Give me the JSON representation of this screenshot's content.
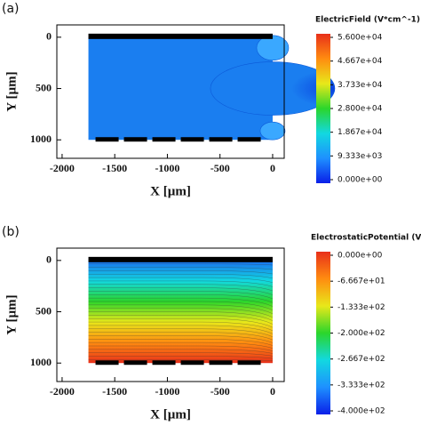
{
  "chart_data": [
    {
      "type": "contour",
      "panel_label": "(a)",
      "xlabel": "X [µm]",
      "ylabel": "Y [µm]",
      "xlim": [
        -2050,
        110
      ],
      "xticks": [
        -2000,
        -1500,
        -1000,
        -500,
        0
      ],
      "ylim": [
        -120,
        1180
      ],
      "y_inverted": true,
      "yticks": [
        0,
        500,
        1000
      ],
      "colorbar_title": "ElectricField (V*cm^-1)",
      "clim": [
        0,
        56000
      ],
      "colormap": [
        "#0a1fe8",
        "#1e90ff",
        "#12d8e0",
        "#2bd62b",
        "#e8e81a",
        "#ff8c10",
        "#e8301a"
      ],
      "cticks": [
        {
          "value": 56000,
          "label": "5.600e+04"
        },
        {
          "value": 46670,
          "label": "4.667e+04"
        },
        {
          "value": 37330,
          "label": "3.733e+04"
        },
        {
          "value": 28000,
          "label": "2.800e+04"
        },
        {
          "value": 18670,
          "label": "1.867e+04"
        },
        {
          "value": 9333,
          "label": "9.333e+03"
        },
        {
          "value": 0,
          "label": "0.000e+00"
        }
      ]
    },
    {
      "type": "contour",
      "panel_label": "(b)",
      "xlabel": "X [µm]",
      "ylabel": "Y [µm]",
      "xlim": [
        -2050,
        110
      ],
      "xticks": [
        -2000,
        -1500,
        -1000,
        -500,
        0
      ],
      "ylim": [
        -120,
        1180
      ],
      "y_inverted": true,
      "yticks": [
        0,
        500,
        1000
      ],
      "colorbar_title": "ElectrostaticPotential (V)",
      "clim": [
        -400,
        0
      ],
      "colormap": [
        "#0a1fe8",
        "#1e90ff",
        "#12d8e0",
        "#2bd62b",
        "#e8e81a",
        "#ff8c10",
        "#e8301a"
      ],
      "cticks": [
        {
          "value": 0,
          "label": "0.000e+00"
        },
        {
          "value": -66.67,
          "label": "-6.667e+01"
        },
        {
          "value": -133.3,
          "label": "-1.333e+02"
        },
        {
          "value": -200,
          "label": "-2.000e+02"
        },
        {
          "value": -266.7,
          "label": "-2.667e+02"
        },
        {
          "value": -333.3,
          "label": "-3.333e+02"
        },
        {
          "value": -400,
          "label": "-4.000e+02"
        }
      ]
    }
  ]
}
